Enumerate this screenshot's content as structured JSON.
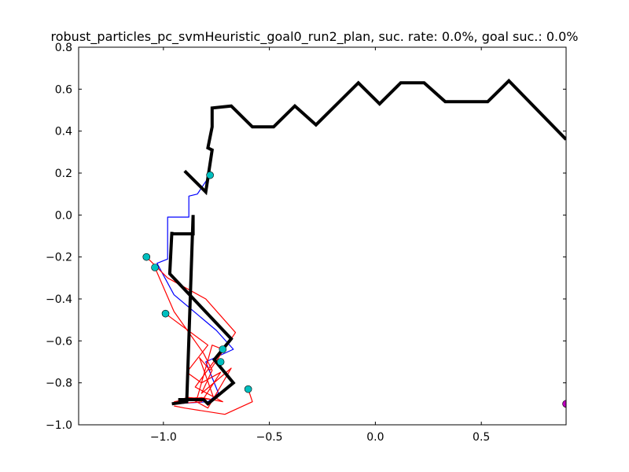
{
  "chart_data": {
    "type": "line",
    "title": "robust_particles_pc_svmHeuristic_goal0_run2_plan, suc. rate: 0.0%, goal suc.: 0.0%",
    "xlabel": "",
    "ylabel": "",
    "xlim": [
      -1.4,
      0.9
    ],
    "ylim": [
      -1.0,
      0.8
    ],
    "grid": false,
    "x_ticks": [
      -1.0,
      -0.5,
      0.0,
      0.5
    ],
    "x_tick_labels": [
      "−1.0",
      "−0.5",
      "0.0",
      "0.5"
    ],
    "y_ticks": [
      0.8,
      0.6,
      0.4,
      0.2,
      0.0,
      -0.2,
      -0.4,
      -0.6,
      -0.8,
      -1.0
    ],
    "y_tick_labels": [
      "0.8",
      "0.6",
      "0.4",
      "0.2",
      "0.0",
      "−0.2",
      "−0.4",
      "−0.6",
      "−0.8",
      "−1.0"
    ],
    "colors": {
      "plan": "#000000",
      "executed": "#0000ff",
      "particles": "#ff0000",
      "start_markers": "#00bfbf",
      "goal_marker": "#bf00bf"
    },
    "series": [
      {
        "name": "particle-trajectory-1",
        "color": "#ff0000",
        "x": [
          -0.95,
          -0.84,
          -0.77,
          -0.72,
          -0.85,
          -0.72,
          -0.82,
          -0.95
        ],
        "y": [
          -0.89,
          -0.87,
          -0.62,
          -0.64,
          -0.82,
          -0.89,
          -0.87,
          -0.89
        ]
      },
      {
        "name": "particle-trajectory-2",
        "color": "#ff0000",
        "x": [
          -1.04,
          -0.95,
          -0.81,
          -0.77,
          -0.82,
          -0.68,
          -0.79,
          -0.88,
          -0.94
        ],
        "y": [
          -0.25,
          -0.46,
          -0.66,
          -0.74,
          -0.85,
          -0.73,
          -0.92,
          -0.87,
          -0.9
        ]
      },
      {
        "name": "particle-trajectory-3",
        "color": "#ff0000",
        "x": [
          -0.99,
          -0.79,
          -0.89,
          -0.82,
          -0.73,
          -0.82,
          -0.94
        ],
        "y": [
          -0.47,
          -0.62,
          -0.75,
          -0.8,
          -0.75,
          -0.89,
          -0.9
        ]
      },
      {
        "name": "particle-trajectory-4",
        "color": "#ff0000",
        "x": [
          -1.08,
          -0.98,
          -0.8,
          -0.66,
          -0.78,
          -0.83,
          -0.76,
          -0.88,
          -0.93
        ],
        "y": [
          -0.2,
          -0.3,
          -0.4,
          -0.56,
          -0.74,
          -0.68,
          -0.88,
          -0.87,
          -0.88
        ]
      },
      {
        "name": "particle-trajectory-5",
        "color": "#ff0000",
        "x": [
          -0.6,
          -0.58,
          -0.71,
          -0.9,
          -0.95
        ],
        "y": [
          -0.83,
          -0.89,
          -0.95,
          -0.92,
          -0.91
        ]
      },
      {
        "name": "executed-trajectory",
        "color": "#0000ff",
        "x": [
          -0.78,
          -0.84,
          -0.88,
          -0.88,
          -0.98,
          -0.98,
          -1.03,
          -0.95,
          -0.75,
          -0.67,
          -0.8,
          -0.74,
          -0.79,
          -0.95
        ],
        "y": [
          0.19,
          0.1,
          0.09,
          -0.01,
          -0.01,
          -0.21,
          -0.23,
          -0.38,
          -0.55,
          -0.64,
          -0.7,
          -0.85,
          -0.89,
          -0.9
        ]
      },
      {
        "name": "planned-path",
        "color": "#000000",
        "x": [
          -0.9,
          -0.8,
          -0.77,
          -0.79,
          -0.77,
          -0.77,
          -0.68,
          -0.58,
          -0.48,
          -0.38,
          -0.28,
          -0.08,
          0.02,
          0.12,
          0.23,
          0.33,
          0.53,
          0.63,
          0.9
        ],
        "y": [
          0.21,
          0.11,
          0.31,
          0.32,
          0.42,
          0.51,
          0.52,
          0.42,
          0.42,
          0.52,
          0.43,
          0.63,
          0.53,
          0.63,
          0.63,
          0.54,
          0.54,
          0.64,
          0.36
        ]
      },
      {
        "name": "planned-path-lower",
        "color": "#000000",
        "x": [
          -0.96,
          -0.89,
          -0.86,
          -0.86,
          -0.96,
          -0.96,
          -0.97,
          -0.68,
          -0.76,
          -0.67,
          -0.79,
          -0.81,
          -0.93
        ],
        "y": [
          -0.9,
          -0.89,
          0.0,
          -0.09,
          -0.09,
          -0.08,
          -0.28,
          -0.59,
          -0.69,
          -0.8,
          -0.9,
          -0.88,
          -0.88
        ]
      }
    ],
    "start_points": {
      "color": "#00bfbf",
      "x": [
        -0.78,
        -1.08,
        -1.04,
        -0.99,
        -0.72,
        -0.6,
        -0.73
      ],
      "y": [
        0.19,
        -0.2,
        -0.25,
        -0.47,
        -0.64,
        -0.83,
        -0.7
      ]
    },
    "goal_point": {
      "color": "#bf00bf",
      "x": [
        0.9
      ],
      "y": [
        -0.9
      ]
    }
  }
}
